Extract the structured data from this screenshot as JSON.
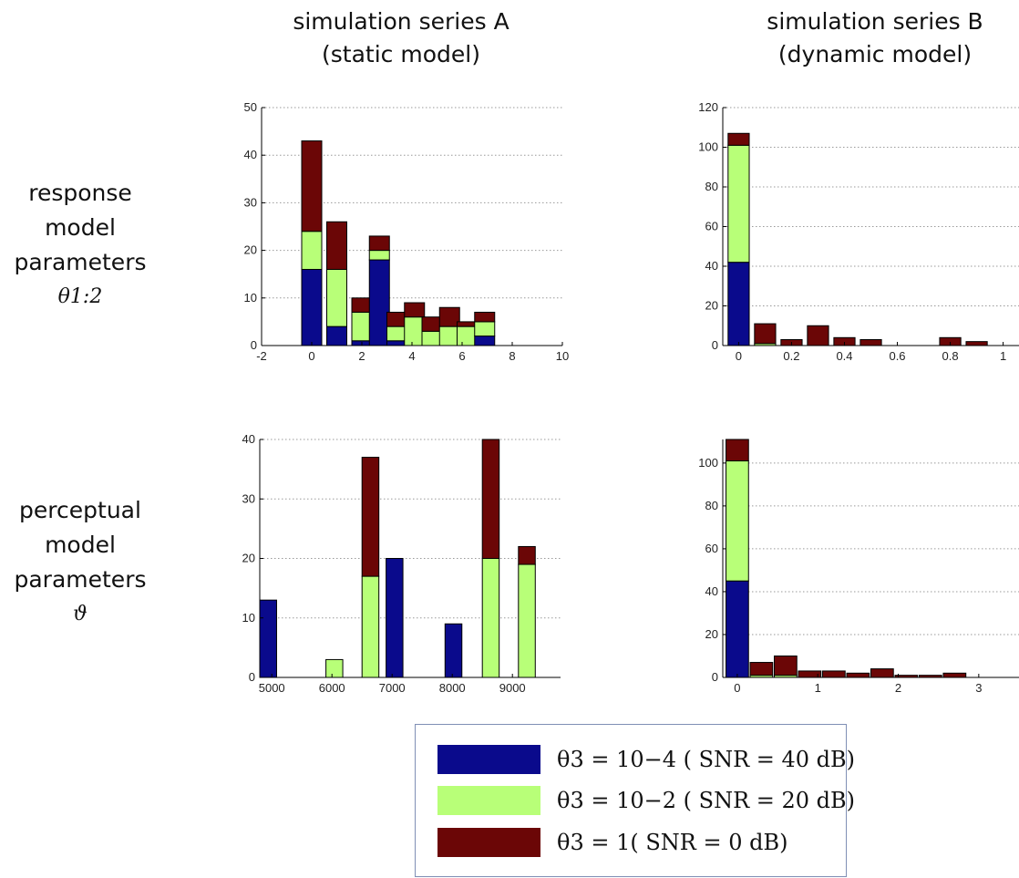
{
  "titles": {
    "col_a_line1": "simulation series A",
    "col_a_line2": "(static model)",
    "col_b_line1": "simulation series B",
    "col_b_line2": "(dynamic model)"
  },
  "rows": {
    "r1_line1": "response",
    "r1_line2": "model",
    "r1_line3": "parameters",
    "r1_symbol": "θ1:2",
    "r2_line1": "perceptual",
    "r2_line2": "model",
    "r2_line3": "parameters",
    "r2_symbol": "ϑ"
  },
  "colors": {
    "blue": "#0a0a8c",
    "green": "#b8ff78",
    "red": "#6b0606"
  },
  "legend": {
    "items": [
      {
        "color": "#0a0a8c",
        "text": "θ3 = 10−4 ( SNR = 40 dB)"
      },
      {
        "color": "#b8ff78",
        "text": "θ3 = 10−2 ( SNR = 20 dB)"
      },
      {
        "color": "#6b0606",
        "text": "θ3 = 1( SNR = 0 dB)"
      }
    ]
  },
  "chart_data": [
    {
      "type": "bar",
      "stacked": true,
      "grid": "horizontal dotted",
      "xlim": [
        -2,
        10
      ],
      "ylim": [
        0,
        50
      ],
      "xticks": [
        -2,
        0,
        2,
        4,
        6,
        8,
        10
      ],
      "yticks": [
        0,
        10,
        20,
        30,
        40,
        50
      ],
      "bar_width": 0.8,
      "x": [
        0,
        1,
        2,
        2.7,
        3.4,
        4.1,
        4.8,
        5.5,
        6.2,
        6.9
      ],
      "series": [
        {
          "color": "blue",
          "values": [
            16,
            4,
            1,
            18,
            1,
            0,
            0,
            0,
            0,
            2
          ]
        },
        {
          "color": "green",
          "values": [
            8,
            12,
            6,
            2,
            3,
            6,
            3,
            4,
            4,
            3
          ]
        },
        {
          "color": "red",
          "values": [
            19,
            10,
            3,
            3,
            3,
            3,
            3,
            4,
            1,
            2
          ]
        }
      ]
    },
    {
      "type": "bar",
      "stacked": true,
      "grid": "horizontal dotted",
      "xlim": [
        -0.06,
        1.06
      ],
      "ylim": [
        0,
        120
      ],
      "xticks": [
        0,
        0.2,
        0.4,
        0.6,
        0.8,
        1
      ],
      "yticks": [
        0,
        20,
        40,
        60,
        80,
        100,
        120
      ],
      "bar_width": 0.08,
      "x": [
        0,
        0.1,
        0.2,
        0.3,
        0.4,
        0.5,
        0.8,
        0.9
      ],
      "series": [
        {
          "color": "blue",
          "values": [
            42,
            0,
            0,
            0,
            0,
            0,
            0,
            0
          ]
        },
        {
          "color": "green",
          "values": [
            59,
            1,
            0,
            0,
            0,
            0,
            0,
            0
          ]
        },
        {
          "color": "red",
          "values": [
            6,
            10,
            3,
            10,
            4,
            3,
            4,
            2
          ]
        }
      ]
    },
    {
      "type": "bar",
      "stacked": true,
      "grid": "horizontal dotted",
      "xlim": [
        4800,
        9800
      ],
      "ylim": [
        0,
        40
      ],
      "xticks": [
        5000,
        6000,
        7000,
        8000,
        9000
      ],
      "yticks": [
        0,
        10,
        20,
        30,
        40
      ],
      "bar_width": 280,
      "x": [
        4940,
        6040,
        6640,
        7040,
        8020,
        8640,
        9240
      ],
      "series": [
        {
          "color": "blue",
          "values": [
            13,
            0,
            0,
            20,
            9,
            0,
            0
          ]
        },
        {
          "color": "green",
          "values": [
            0,
            3,
            17,
            0,
            0,
            20,
            19
          ]
        },
        {
          "color": "red",
          "values": [
            0,
            0,
            20,
            0,
            0,
            20,
            3
          ]
        }
      ]
    },
    {
      "type": "bar",
      "stacked": true,
      "grid": "horizontal dotted",
      "xlim": [
        -0.18,
        3.5
      ],
      "ylim": [
        0,
        111
      ],
      "xticks": [
        0,
        1,
        2,
        3
      ],
      "yticks": [
        0,
        20,
        40,
        60,
        80,
        100
      ],
      "bar_width": 0.28,
      "x": [
        0,
        0.3,
        0.6,
        0.9,
        1.2,
        1.5,
        1.8,
        2.1,
        2.4,
        2.7
      ],
      "series": [
        {
          "color": "blue",
          "values": [
            45,
            0,
            0,
            0,
            0,
            0,
            0,
            0,
            0,
            0
          ]
        },
        {
          "color": "green",
          "values": [
            56,
            1,
            1,
            0,
            0,
            0,
            0,
            0,
            0,
            0
          ]
        },
        {
          "color": "red",
          "values": [
            10,
            6,
            9,
            3,
            3,
            2,
            4,
            1,
            1,
            2
          ]
        }
      ]
    }
  ]
}
